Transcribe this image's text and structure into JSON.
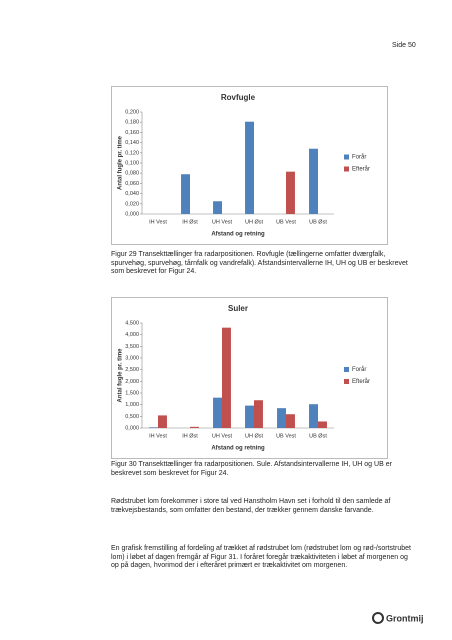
{
  "header": {
    "page": "Side 50"
  },
  "chart_data": [
    {
      "type": "bar",
      "title": "Rovfugle",
      "y_label": "Antal fugle pr. time",
      "x_label": "Afstand og retning",
      "categories": [
        "IH Vest",
        "IH Øst",
        "UH Vest",
        "UH Øst",
        "UB Vest",
        "UB Øst"
      ],
      "series": [
        {
          "name": "Forår",
          "color": "#4f81bd",
          "values": [
            null,
            0.078,
            0.025,
            0.181,
            null,
            0.128
          ]
        },
        {
          "name": "Efterår",
          "color": "#c0504d",
          "values": [
            null,
            null,
            null,
            null,
            0.083,
            null
          ]
        }
      ],
      "ylim": [
        0,
        0.2
      ],
      "yticks": [
        {
          "value": 0,
          "label": "0,000"
        },
        {
          "value": 0.02,
          "label": "0,020"
        },
        {
          "value": 0.04,
          "label": "0,040"
        },
        {
          "value": 0.06,
          "label": "0,060"
        },
        {
          "value": 0.08,
          "label": "0,080"
        },
        {
          "value": 0.1,
          "label": "0,100"
        },
        {
          "value": 0.12,
          "label": "0,120"
        },
        {
          "value": 0.14,
          "label": "0,140"
        },
        {
          "value": 0.16,
          "label": "0,160"
        },
        {
          "value": 0.18,
          "label": "0,180"
        },
        {
          "value": 0.2,
          "label": "0,200"
        }
      ],
      "legend": "right"
    },
    {
      "type": "bar",
      "title": "Suler",
      "y_label": "Antal fugle pr. time",
      "x_label": "Afstand og retning",
      "categories": [
        "IH Vest",
        "IH Øst",
        "UH Vest",
        "UH Øst",
        "UB Vest",
        "UB Øst"
      ],
      "series": [
        {
          "name": "Forår",
          "color": "#4f81bd",
          "values": [
            0.03,
            0,
            1.3,
            0.96,
            0.85,
            1.02
          ]
        },
        {
          "name": "Efterår",
          "color": "#c0504d",
          "values": [
            0.54,
            0.05,
            4.3,
            1.19,
            0.59,
            0.28
          ]
        }
      ],
      "ylim": [
        0,
        4.5
      ],
      "yticks": [
        {
          "value": 0,
          "label": "0,000"
        },
        {
          "value": 0.5,
          "label": "0,500"
        },
        {
          "value": 1,
          "label": "1,000"
        },
        {
          "value": 1.5,
          "label": "1,500"
        },
        {
          "value": 2,
          "label": "2,000"
        },
        {
          "value": 2.5,
          "label": "2,500"
        },
        {
          "value": 3,
          "label": "3,000"
        },
        {
          "value": 3.5,
          "label": "3,500"
        },
        {
          "value": 4,
          "label": "4,000"
        },
        {
          "value": 4.5,
          "label": "4,500"
        }
      ],
      "legend": "right"
    }
  ],
  "captions": [
    "Figur 29 Transekttællinger fra radarpositionen. Rovfugle (tællingerne omfatter dværgfalk, spurvehøg, spurvehøg, tårnfalk og vandrefalk). Afstandsintervallerne IH, UH og UB er beskrevet som beskrevet for Figur 24.",
    "Figur 30 Transekttællinger fra radarpositionen. Sule. Afstandsintervallerne IH, UH og UB er beskrevet som beskrevet for Figur 24."
  ],
  "paragraphs": [
    "Rødstrubet lom forekommer i store tal ved Hanstholm Havn set i forhold til den samlede af trækvejsbestands, som omfatter den bestand, der trækker gennem danske farvande.",
    "En grafisk fremstilling af fordeling af trækket af rødstrubet lom (rødstrubet lom og rød-/sortstrubet lom) i løbet af dagen fremgår af Figur 31. I foråret foregår trækaktiviteten i løbet af morgenen og op på dagen, hvorimod der i efteråret primært er trækaktivitet om morgenen."
  ],
  "footer": {
    "logo": "Grontmij"
  }
}
